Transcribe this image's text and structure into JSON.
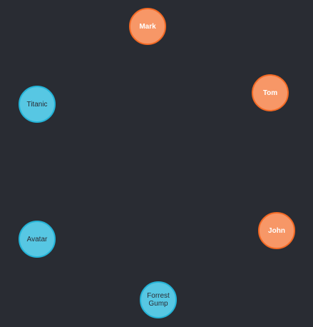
{
  "colors": {
    "background": "#292c33",
    "person_fill": "#f79767",
    "person_border": "#f36924",
    "person_text": "#ffffff",
    "movie_fill": "#57c7e3",
    "movie_border": "#23b3d7",
    "movie_text": "#2a2c34"
  },
  "nodes": {
    "mark": {
      "label": "Mark",
      "type": "person"
    },
    "tom": {
      "label": "Tom",
      "type": "person"
    },
    "john": {
      "label": "John",
      "type": "person"
    },
    "titanic": {
      "label": "Titanic",
      "type": "movie"
    },
    "avatar": {
      "label": "Avatar",
      "type": "movie"
    },
    "forrest": {
      "label": "Forrest Gump",
      "type": "movie"
    }
  }
}
